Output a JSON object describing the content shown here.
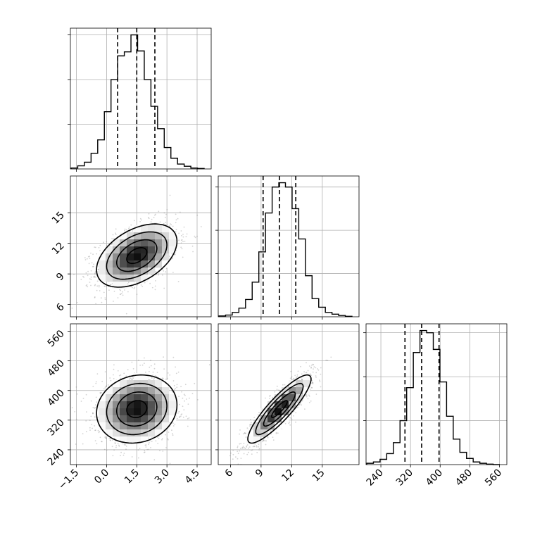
{
  "chart_data": {
    "type": "corner",
    "grid": true,
    "colors": {
      "line": "#000000",
      "grid": "#b0b0b0",
      "scatter": "#808080",
      "background": "#ffffff"
    },
    "parameters": [
      {
        "range": [
          -1.8,
          5.2
        ],
        "ticks": [
          -1.5,
          0.0,
          1.5,
          3.0,
          4.5
        ],
        "tick_labels": [
          "−1.5",
          "0.0",
          "1.5",
          "3.0",
          "4.5"
        ],
        "quantiles": [
          0.55,
          1.5,
          2.4
        ]
      },
      {
        "range": [
          4.8,
          18.6
        ],
        "ticks": [
          6,
          9,
          12,
          15
        ],
        "tick_labels": [
          "6",
          "9",
          "12",
          "15"
        ],
        "quantiles": [
          9.2,
          10.8,
          12.4
        ]
      },
      {
        "range": [
          200,
          580
        ],
        "ticks": [
          240,
          320,
          400,
          480,
          560
        ],
        "tick_labels": [
          "240",
          "320",
          "400",
          "480",
          "560"
        ],
        "quantiles": [
          305,
          350,
          397
        ]
      }
    ],
    "histograms": [
      {
        "param": 0,
        "y_ticks": [
          100,
          200,
          300
        ],
        "counts": [
          2,
          7,
          15,
          35,
          65,
          128,
          200,
          253,
          262,
          300,
          264,
          200,
          140,
          90,
          48,
          24,
          11,
          6,
          2,
          1
        ]
      },
      {
        "param": 1,
        "y_ticks": [
          100,
          200,
          300
        ],
        "counts": [
          2,
          4,
          10,
          20,
          40,
          80,
          150,
          240,
          300,
          310,
          300,
          250,
          180,
          95,
          42,
          22,
          10,
          6,
          3,
          1
        ]
      },
      {
        "param": 2,
        "y_ticks": [
          100,
          200,
          300
        ],
        "counts": [
          3,
          6,
          12,
          25,
          50,
          100,
          175,
          255,
          305,
          300,
          262,
          188,
          110,
          58,
          28,
          14,
          6,
          3,
          1,
          0
        ]
      }
    ],
    "pairs": [
      {
        "x_param": 0,
        "y_param": 1,
        "mean": [
          1.5,
          10.8
        ],
        "sd": [
          1.0,
          1.55
        ],
        "rho": 0.45
      },
      {
        "x_param": 0,
        "y_param": 2,
        "mean": [
          1.5,
          350
        ],
        "sd": [
          1.0,
          46
        ],
        "rho": 0.12
      },
      {
        "x_param": 1,
        "y_param": 2,
        "mean": [
          10.8,
          350
        ],
        "sd": [
          1.55,
          46
        ],
        "rho": 0.88
      }
    ]
  }
}
